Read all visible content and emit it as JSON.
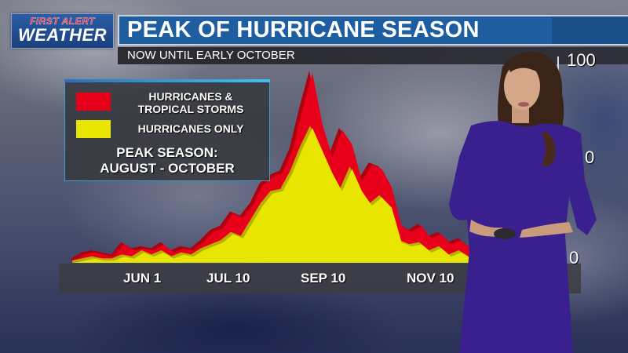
{
  "header": {
    "logo": {
      "line1": "FIRST ALERT",
      "line2": "WEATHER"
    },
    "title": "PEAK OF HURRICANE SEASON",
    "subtitle": "NOW UNTIL EARLY OCTOBER"
  },
  "legend": {
    "items": [
      {
        "label": "HURRICANES & TROPICAL STORMS",
        "line1": "HURRICANES &",
        "line2": "TROPICAL STORMS",
        "color": "#e8001a"
      },
      {
        "label": "HURRICANES ONLY",
        "color": "#e8e600"
      }
    ],
    "note_line1": "PEAK SEASON:",
    "note_line2": "AUGUST - OCTOBER"
  },
  "axis": {
    "x_labels": [
      "JUN 1",
      "JUL 10",
      "SEP 10",
      "NOV 10"
    ],
    "y_labels": [
      "100",
      "0",
      "0"
    ]
  },
  "colors": {
    "title_blue": "#1e5da0",
    "red_series": "#e8001a",
    "red_shadow": "#b0000f",
    "yellow_series": "#e8e600",
    "yellow_shadow": "#b8b000",
    "legend_border": "#3b9fd0",
    "dress": "#3a1f8f"
  },
  "chart_data": {
    "type": "area",
    "title": "PEAK OF HURRICANE SEASON",
    "subtitle": "NOW UNTIL EARLY OCTOBER",
    "xlabel": "",
    "ylabel": "",
    "x_tick_labels": [
      "JUN 1",
      "JUL 10",
      "SEP 10",
      "NOV 10"
    ],
    "y_tick_labels_visible": [
      "100"
    ],
    "ylim": [
      0,
      100
    ],
    "grid": false,
    "legend_position": "upper-left",
    "x": [
      0,
      1,
      2,
      3,
      4,
      5,
      6,
      7,
      8,
      9,
      10,
      11,
      12,
      13,
      14,
      15,
      16,
      17,
      18,
      19,
      20,
      21,
      22,
      23,
      24,
      25,
      26,
      27,
      28,
      29,
      30,
      31,
      32,
      33,
      34,
      35,
      36,
      37,
      38,
      39,
      40
    ],
    "series": [
      {
        "name": "HURRICANES & TROPICAL STORMS",
        "color": "#e8001a",
        "values": [
          1,
          4,
          5,
          4,
          3,
          9,
          6,
          7,
          6,
          9,
          5,
          7,
          6,
          10,
          15,
          17,
          24,
          22,
          28,
          38,
          42,
          44,
          55,
          75,
          93,
          68,
          52,
          65,
          58,
          40,
          48,
          46,
          37,
          18,
          15,
          18,
          12,
          14,
          9,
          11,
          7
        ]
      },
      {
        "name": "HURRICANES ONLY",
        "color": "#e8e600",
        "values": [
          0,
          1,
          2,
          1,
          1,
          3,
          2,
          5,
          3,
          5,
          2,
          4,
          3,
          6,
          8,
          10,
          14,
          12,
          20,
          28,
          34,
          35,
          44,
          56,
          66,
          55,
          44,
          35,
          46,
          35,
          28,
          32,
          27,
          10,
          8,
          9,
          5,
          7,
          3,
          5,
          2
        ]
      }
    ],
    "annotations": [
      "PEAK SEASON: AUGUST - OCTOBER"
    ]
  }
}
